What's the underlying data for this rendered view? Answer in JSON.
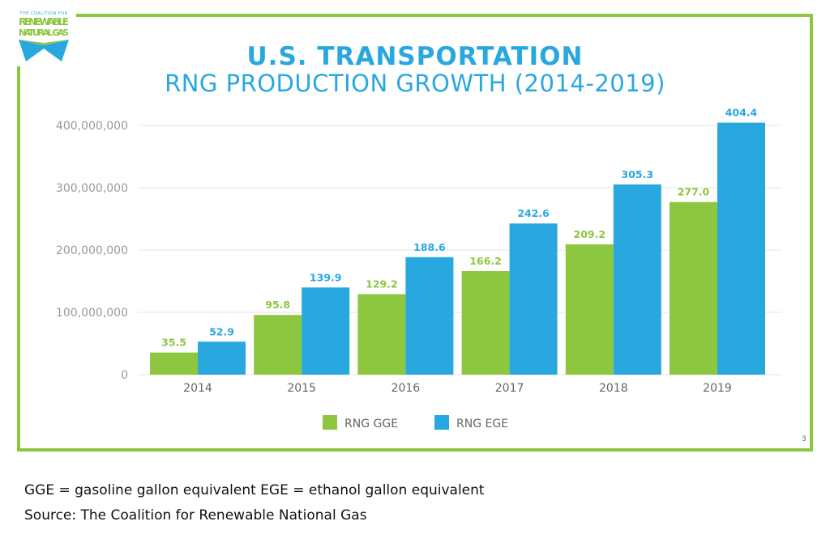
{
  "logo": {
    "text_top": "THE COALITION FOR",
    "text_main": "RENEWABLE NATURAL GAS"
  },
  "chart_data": {
    "type": "bar",
    "title": "U.S. TRANSPORTATION",
    "subtitle": "RNG PRODUCTION GROWTH  (2014-2019)",
    "categories": [
      "2014",
      "2015",
      "2016",
      "2017",
      "2018",
      "2019"
    ],
    "series": [
      {
        "name": "RNG GGE",
        "color": "#8dc63f",
        "values": [
          35.5,
          95.8,
          129.2,
          166.2,
          209.2,
          277.0
        ],
        "labels": [
          "35.5",
          "95.8",
          "129.2",
          "166.2",
          "209.2",
          "277.0"
        ]
      },
      {
        "name": "RNG EGE",
        "color": "#29a8e0",
        "values": [
          52.9,
          139.9,
          188.6,
          242.6,
          305.3,
          404.4
        ],
        "labels": [
          "52.9",
          "139.9",
          "188.6",
          "242.6",
          "305.3",
          "404.4"
        ]
      }
    ],
    "value_unit_multiplier": 1000000,
    "yticks": [
      "0",
      "100,000,000",
      "200,000,000",
      "300,000,000",
      "400,000,000"
    ],
    "ytick_values": [
      0,
      100000000,
      200000000,
      300000000,
      400000000
    ],
    "ylim": [
      0,
      400000000
    ],
    "grid": true,
    "legend": "bottom-center"
  },
  "page_number": "3",
  "footer": {
    "line1": "GGE = gasoline gallon equivalent EGE = ethanol gallon equivalent",
    "line2": "Source: The Coalition for Renewable National Gas"
  }
}
